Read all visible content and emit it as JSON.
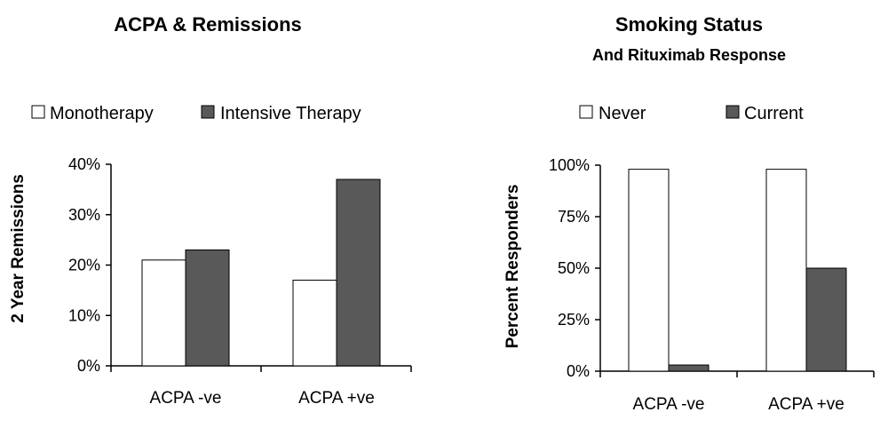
{
  "chart_data": [
    {
      "type": "bar",
      "title": "ACPA & Remissions",
      "subtitle": "",
      "xlabel": "",
      "ylabel": "2 Year Remissions",
      "categories": [
        "ACPA -ve",
        "ACPA +ve"
      ],
      "series": [
        {
          "name": "Monotherapy",
          "values": [
            21,
            17
          ],
          "color": "#ffffff"
        },
        {
          "name": "Intensive Therapy",
          "values": [
            23,
            37
          ],
          "color": "#595959"
        }
      ],
      "ylim": [
        0,
        40
      ],
      "yticks": [
        "0%",
        "10%",
        "20%",
        "30%",
        "40%"
      ],
      "grid": false,
      "legend_position": "top"
    },
    {
      "type": "bar",
      "title": "Smoking Status",
      "subtitle": "And Rituximab Response",
      "xlabel": "",
      "ylabel": "Percent Responders",
      "categories": [
        "ACPA -ve",
        "ACPA +ve"
      ],
      "series": [
        {
          "name": "Never",
          "values": [
            98,
            98
          ],
          "color": "#ffffff"
        },
        {
          "name": "Current",
          "values": [
            3,
            50
          ],
          "color": "#595959"
        }
      ],
      "ylim": [
        0,
        100
      ],
      "yticks": [
        "0%",
        "25%",
        "50%",
        "75%",
        "100%"
      ],
      "grid": false,
      "legend_position": "top"
    }
  ]
}
